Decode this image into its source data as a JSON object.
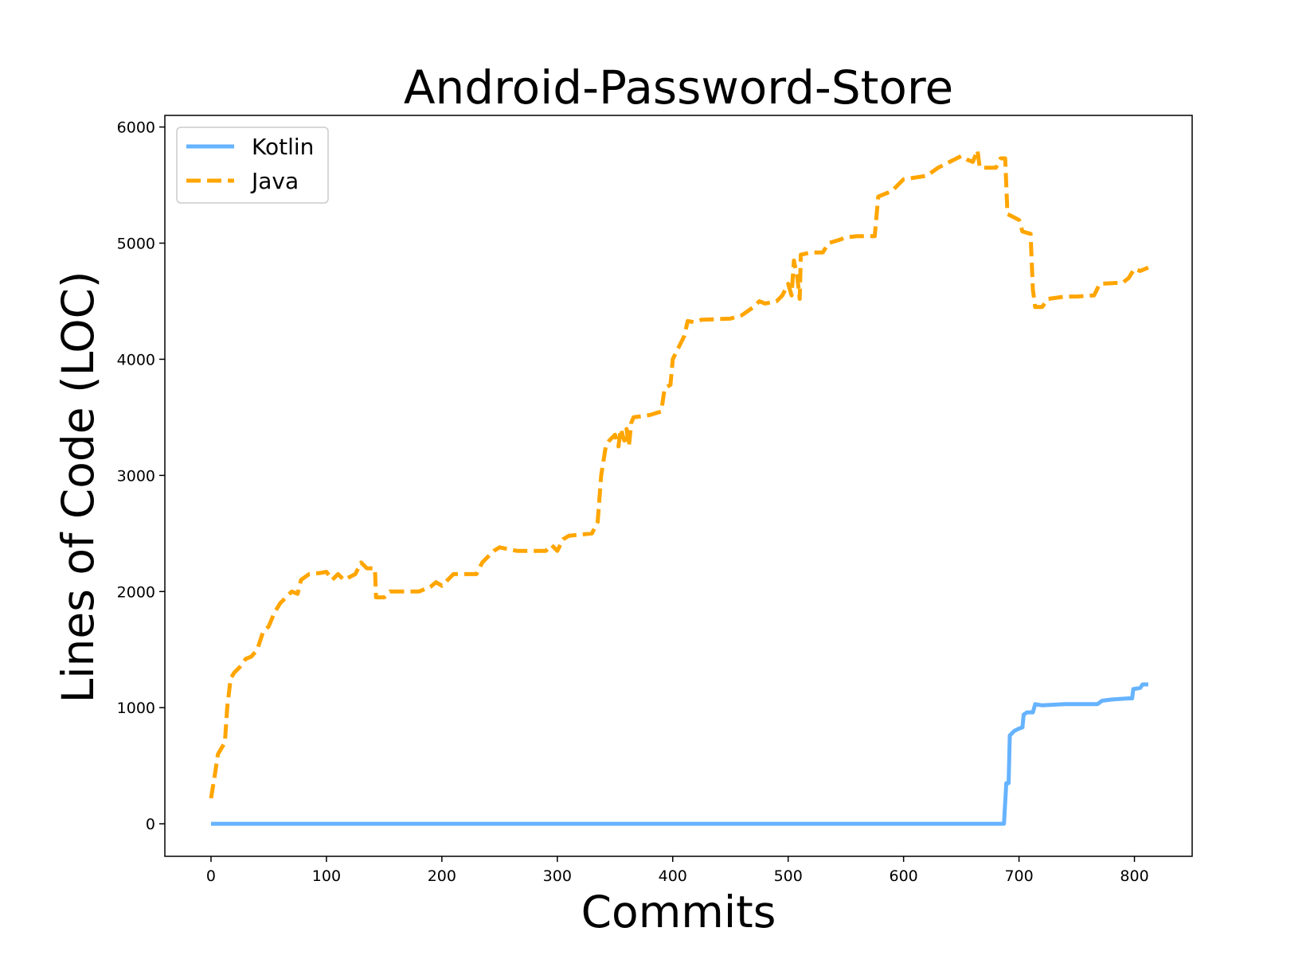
{
  "chart_data": {
    "type": "line",
    "title": "Android-Password-Store",
    "xlabel": "Commits",
    "ylabel": "Lines of Code (LOC)",
    "xlim": [
      -40,
      850
    ],
    "ylim": [
      -280,
      6100
    ],
    "xticks": [
      0,
      100,
      200,
      300,
      400,
      500,
      600,
      700,
      800
    ],
    "yticks": [
      0,
      1000,
      2000,
      3000,
      4000,
      5000,
      6000
    ],
    "grid": false,
    "legend": {
      "placement": "top-left"
    },
    "series": [
      {
        "name": "Kotlin",
        "color": "#66b3ff",
        "style": "solid",
        "points": [
          [
            0,
            0
          ],
          [
            687,
            0
          ],
          [
            689,
            350
          ],
          [
            691,
            350
          ],
          [
            692,
            760
          ],
          [
            696,
            800
          ],
          [
            700,
            820
          ],
          [
            703,
            830
          ],
          [
            704,
            940
          ],
          [
            707,
            960
          ],
          [
            712,
            960
          ],
          [
            714,
            1030
          ],
          [
            720,
            1020
          ],
          [
            740,
            1030
          ],
          [
            760,
            1030
          ],
          [
            768,
            1030
          ],
          [
            772,
            1060
          ],
          [
            780,
            1070
          ],
          [
            795,
            1080
          ],
          [
            798,
            1080
          ],
          [
            799,
            1160
          ],
          [
            805,
            1170
          ],
          [
            807,
            1200
          ],
          [
            812,
            1200
          ]
        ]
      },
      {
        "name": "Java",
        "color": "#ffa500",
        "style": "dashed",
        "points": [
          [
            0,
            220
          ],
          [
            3,
            400
          ],
          [
            6,
            600
          ],
          [
            9,
            650
          ],
          [
            12,
            700
          ],
          [
            14,
            1000
          ],
          [
            17,
            1250
          ],
          [
            20,
            1300
          ],
          [
            25,
            1350
          ],
          [
            30,
            1420
          ],
          [
            35,
            1440
          ],
          [
            40,
            1500
          ],
          [
            45,
            1650
          ],
          [
            50,
            1700
          ],
          [
            55,
            1820
          ],
          [
            60,
            1900
          ],
          [
            65,
            1950
          ],
          [
            70,
            2000
          ],
          [
            75,
            1980
          ],
          [
            78,
            2100
          ],
          [
            85,
            2150
          ],
          [
            95,
            2160
          ],
          [
            100,
            2170
          ],
          [
            105,
            2100
          ],
          [
            110,
            2150
          ],
          [
            115,
            2100
          ],
          [
            125,
            2150
          ],
          [
            130,
            2250
          ],
          [
            135,
            2200
          ],
          [
            142,
            2200
          ],
          [
            143,
            1950
          ],
          [
            150,
            1950
          ],
          [
            155,
            2000
          ],
          [
            180,
            2000
          ],
          [
            190,
            2040
          ],
          [
            195,
            2080
          ],
          [
            200,
            2050
          ],
          [
            210,
            2150
          ],
          [
            225,
            2150
          ],
          [
            230,
            2150
          ],
          [
            235,
            2250
          ],
          [
            240,
            2300
          ],
          [
            245,
            2350
          ],
          [
            250,
            2380
          ],
          [
            255,
            2370
          ],
          [
            265,
            2350
          ],
          [
            290,
            2350
          ],
          [
            295,
            2400
          ],
          [
            300,
            2350
          ],
          [
            305,
            2450
          ],
          [
            310,
            2480
          ],
          [
            320,
            2490
          ],
          [
            330,
            2500
          ],
          [
            335,
            2600
          ],
          [
            338,
            3000
          ],
          [
            342,
            3250
          ],
          [
            345,
            3300
          ],
          [
            350,
            3350
          ],
          [
            353,
            3250
          ],
          [
            355,
            3400
          ],
          [
            358,
            3300
          ],
          [
            360,
            3400
          ],
          [
            362,
            3250
          ],
          [
            364,
            3450
          ],
          [
            366,
            3500
          ],
          [
            380,
            3520
          ],
          [
            390,
            3550
          ],
          [
            393,
            3750
          ],
          [
            398,
            3780
          ],
          [
            400,
            4000
          ],
          [
            405,
            4100
          ],
          [
            410,
            4200
          ],
          [
            413,
            4330
          ],
          [
            418,
            4320
          ],
          [
            425,
            4340
          ],
          [
            450,
            4350
          ],
          [
            460,
            4380
          ],
          [
            470,
            4450
          ],
          [
            475,
            4500
          ],
          [
            480,
            4480
          ],
          [
            490,
            4500
          ],
          [
            495,
            4550
          ],
          [
            500,
            4650
          ],
          [
            503,
            4550
          ],
          [
            505,
            4850
          ],
          [
            508,
            4700
          ],
          [
            510,
            4520
          ],
          [
            511,
            4900
          ],
          [
            520,
            4920
          ],
          [
            530,
            4920
          ],
          [
            535,
            5000
          ],
          [
            545,
            5030
          ],
          [
            550,
            5050
          ],
          [
            560,
            5060
          ],
          [
            575,
            5060
          ],
          [
            578,
            5400
          ],
          [
            590,
            5450
          ],
          [
            600,
            5550
          ],
          [
            620,
            5580
          ],
          [
            630,
            5650
          ],
          [
            640,
            5700
          ],
          [
            650,
            5750
          ],
          [
            655,
            5720
          ],
          [
            660,
            5700
          ],
          [
            664,
            5800
          ],
          [
            666,
            5650
          ],
          [
            680,
            5650
          ],
          [
            684,
            5730
          ],
          [
            688,
            5730
          ],
          [
            690,
            5250
          ],
          [
            700,
            5200
          ],
          [
            703,
            5100
          ],
          [
            710,
            5080
          ],
          [
            712,
            4600
          ],
          [
            714,
            4450
          ],
          [
            720,
            4450
          ],
          [
            725,
            4520
          ],
          [
            740,
            4540
          ],
          [
            750,
            4540
          ],
          [
            765,
            4550
          ],
          [
            770,
            4650
          ],
          [
            790,
            4660
          ],
          [
            795,
            4700
          ],
          [
            800,
            4780
          ],
          [
            805,
            4760
          ],
          [
            812,
            4790
          ]
        ]
      }
    ]
  }
}
